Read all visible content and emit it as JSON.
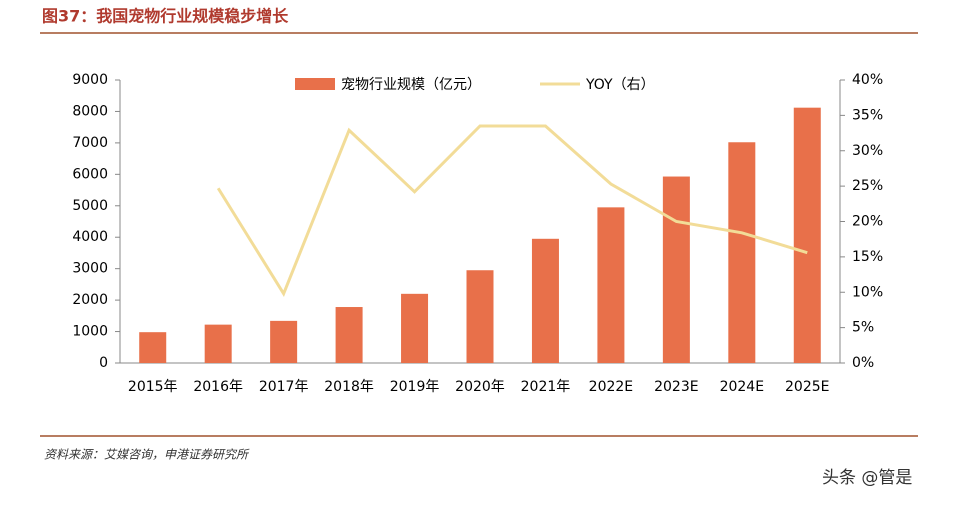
{
  "chart_data": {
    "type": "bar-line",
    "title": "图37：我国宠物行业规模稳步增长",
    "categories": [
      "2015年",
      "2016年",
      "2017年",
      "2018年",
      "2019年",
      "2020年",
      "2021年",
      "2022E",
      "2023E",
      "2024E",
      "2025E"
    ],
    "series": [
      {
        "name": "宠物行业规模（亿元）",
        "type": "bar",
        "color": "#e8704a",
        "values": [
          980,
          1220,
          1340,
          1780,
          2200,
          2950,
          3950,
          4950,
          5930,
          7020,
          8120
        ]
      },
      {
        "name": "YOY（右）",
        "type": "line",
        "axis": "y2",
        "color": "#f2dc98",
        "values": [
          null,
          24.7,
          9.8,
          32.9,
          24.2,
          33.5,
          33.5,
          25.3,
          20.0,
          18.4,
          15.6
        ]
      }
    ],
    "ylim": [
      0,
      9000
    ],
    "yticks": [
      0,
      1000,
      2000,
      3000,
      4000,
      5000,
      6000,
      7000,
      8000,
      9000
    ],
    "y2lim": [
      0,
      40
    ],
    "y2ticks": [
      {
        "value": 0,
        "label": "0%"
      },
      {
        "value": 5,
        "label": "5%"
      },
      {
        "value": 10,
        "label": "10%"
      },
      {
        "value": 15,
        "label": "15%"
      },
      {
        "value": 20,
        "label": "20%"
      },
      {
        "value": 25,
        "label": "25%"
      },
      {
        "value": 30,
        "label": "30%"
      },
      {
        "value": 35,
        "label": "35%"
      },
      {
        "value": 40,
        "label": "40%"
      }
    ],
    "grid": false,
    "source": "资料来源：艾媒咨询，申港证券研究所",
    "watermark": "头条 @管是"
  }
}
